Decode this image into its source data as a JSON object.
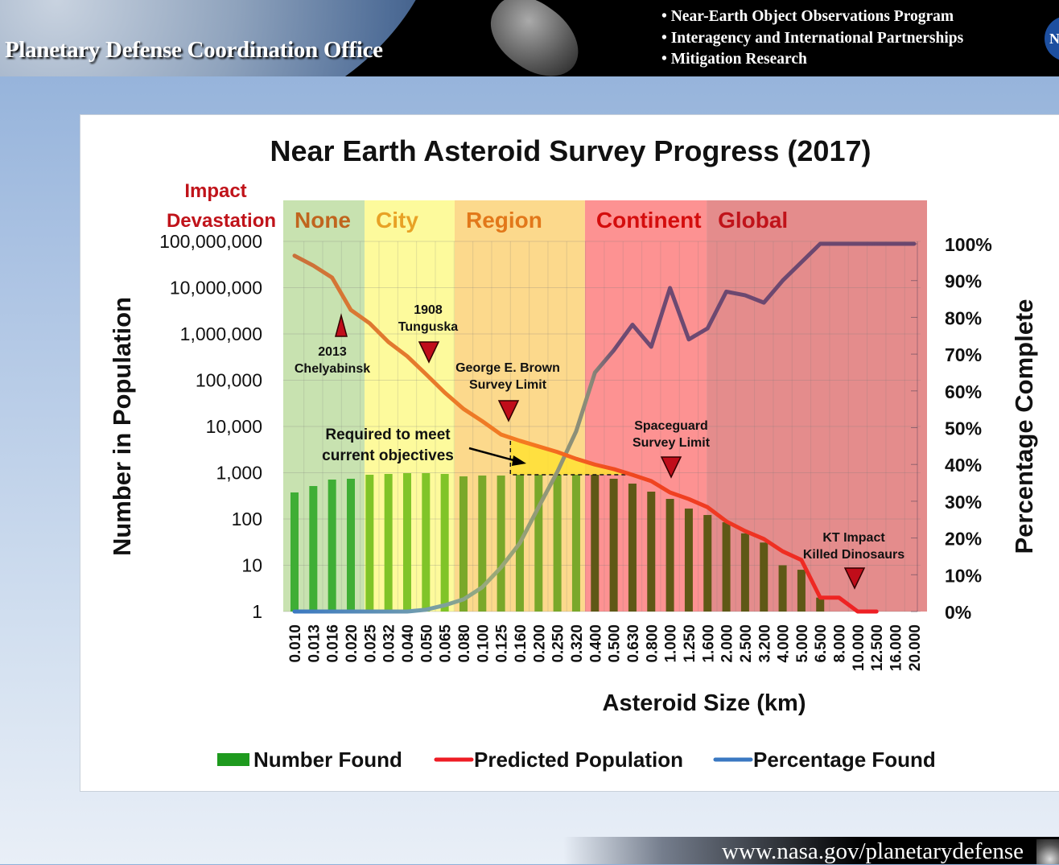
{
  "header": {
    "title": "Planetary Defense Coordination Office",
    "bullets": [
      "• Near-Earth Object Observations Program",
      "• Interagency and International Partnerships",
      "• Mitigation Research"
    ],
    "logo_text": "N"
  },
  "footer": {
    "url": "www.nasa.gov/planetarydefense"
  },
  "chart_data": {
    "type": "bar+line",
    "title": "Near Earth Asteroid Survey Progress  (2017)",
    "xlabel": "Asteroid Size (km)",
    "ylabel": "Number in Population",
    "y2label": "Percentage Complete",
    "yscale": "log",
    "ylim": [
      1,
      100000000
    ],
    "y2lim": [
      0,
      100
    ],
    "grid": true,
    "legend_position": "bottom",
    "y_ticks": [
      "100,000,000",
      "10,000,000",
      "1,000,000",
      "100,000",
      "10,000",
      "1,000",
      "100",
      "10",
      "1"
    ],
    "y2_ticks": [
      "100%",
      "90%",
      "80%",
      "70%",
      "60%",
      "50%",
      "40%",
      "30%",
      "20%",
      "10%",
      "0%"
    ],
    "categories": [
      "0.010",
      "0.013",
      "0.016",
      "0.020",
      "0.025",
      "0.032",
      "0.040",
      "0.050",
      "0.065",
      "0.080",
      "0.100",
      "0.125",
      "0.160",
      "0.200",
      "0.250",
      "0.320",
      "0.400",
      "0.500",
      "0.630",
      "0.800",
      "1.000",
      "1.250",
      "1.600",
      "2.000",
      "2.500",
      "3.200",
      "4.000",
      "5.000",
      "6.500",
      "8.000",
      "10.000",
      "12.500",
      "16.000",
      "20.000"
    ],
    "impact_header": [
      "Impact",
      "Devastation"
    ],
    "bands": [
      {
        "label": "None",
        "color": "#c8e2b0",
        "label_color": "#c0651e"
      },
      {
        "label": "City",
        "color": "#fdfa9c",
        "label_color": "#e8a225"
      },
      {
        "label": "Region",
        "color": "#fcd98c",
        "label_color": "#e2781a"
      },
      {
        "label": "Continent",
        "color": "#fd9292",
        "label_color": "#d40d0d"
      },
      {
        "label": "Global",
        "color": "#e48c8c",
        "label_color": "#c0131a"
      }
    ],
    "series": [
      {
        "name": "Number Found",
        "type": "bar",
        "color": "#1e9a1e",
        "values": [
          375,
          516,
          711,
          741,
          905,
          942,
          980,
          980,
          942,
          835,
          870,
          870,
          905,
          905,
          905,
          905,
          905,
          741,
          582,
          390,
          272,
          168,
          122,
          85,
          49,
          31,
          10,
          8,
          2,
          0,
          0,
          0,
          0,
          0
        ]
      },
      {
        "name": "Predicted Population",
        "type": "line",
        "color": "#ee1c24",
        "values": [
          49000000,
          30000000,
          16500000,
          3300000,
          1700000,
          670000,
          330000,
          135000,
          54000,
          24000,
          13000,
          6700,
          4900,
          3700,
          2800,
          2000,
          1500,
          1200,
          900,
          660,
          375,
          270,
          180,
          89,
          55,
          37,
          20,
          13,
          2,
          2,
          1,
          1,
          null,
          null
        ]
      },
      {
        "name": "Percentage Found",
        "type": "line",
        "axis": "right",
        "color": "#3a78c2",
        "values": [
          0,
          0,
          0,
          0,
          0,
          0,
          0,
          0.5,
          1.7,
          3.3,
          6.6,
          12,
          18.6,
          28.4,
          38,
          49,
          65,
          71,
          78,
          72,
          88,
          74,
          77,
          87,
          86,
          84,
          90,
          95,
          100,
          100,
          100,
          100,
          100,
          100
        ]
      }
    ],
    "annotations": [
      {
        "lines": [
          "2013",
          "Chelyabinsk"
        ],
        "marker": "up"
      },
      {
        "lines": [
          "1908",
          "Tunguska"
        ],
        "marker": "down"
      },
      {
        "lines": [
          "George E. Brown",
          "Survey Limit"
        ],
        "marker": "down"
      },
      {
        "lines": [
          "Spaceguard",
          "Survey Limit"
        ],
        "marker": "down"
      },
      {
        "lines": [
          "KT Impact",
          "Killed Dinosaurs"
        ],
        "marker": "down"
      },
      {
        "lines": [
          "Required to meet",
          "current objectives"
        ],
        "marker": "arrow"
      }
    ],
    "legend": [
      "Number Found",
      "Predicted Population",
      "Percentage Found"
    ]
  }
}
